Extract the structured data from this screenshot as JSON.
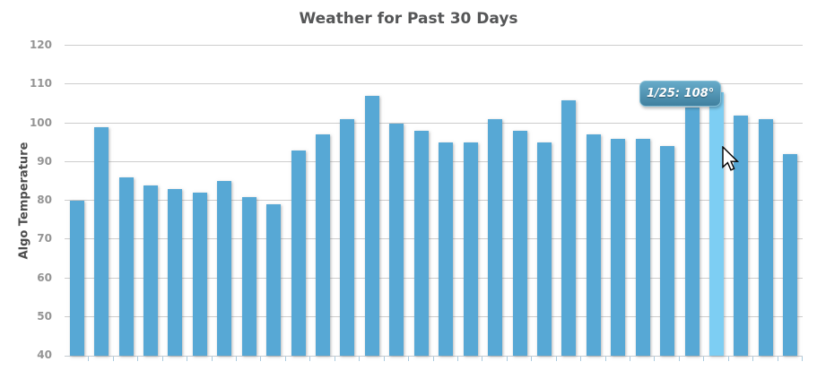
{
  "chart_data": {
    "type": "bar",
    "title": "Weather for Past 30 Days",
    "xlabel": "",
    "ylabel": "Algo Temperature",
    "ylim": [
      40,
      120
    ],
    "yticks": [
      40,
      50,
      60,
      70,
      80,
      90,
      100,
      110,
      120
    ],
    "grid": true,
    "legend": false,
    "x_axis_labels_visible": false,
    "values": [
      80,
      99,
      86,
      84,
      83,
      82,
      85,
      81,
      79,
      93,
      97,
      101,
      107,
      100,
      98,
      95,
      95,
      101,
      98,
      95,
      106,
      97,
      96,
      96,
      94,
      104,
      108,
      102,
      101,
      92
    ],
    "highlighted_index": 26,
    "highlighted_value": 108
  },
  "tooltip": {
    "text": "1/25: 108°"
  },
  "colors": {
    "bar": "#57a8d5",
    "bar_highlight": "#7dcef3",
    "gridline": "#cdcdcd",
    "axis_line": "#c6ccd2",
    "x_tick": "#a9cade",
    "tick_label": "#949494",
    "title": "#555657",
    "tooltip_top": "#67abc9",
    "tooltip_bottom": "#40809f",
    "tooltip_text": "#ffffff"
  }
}
